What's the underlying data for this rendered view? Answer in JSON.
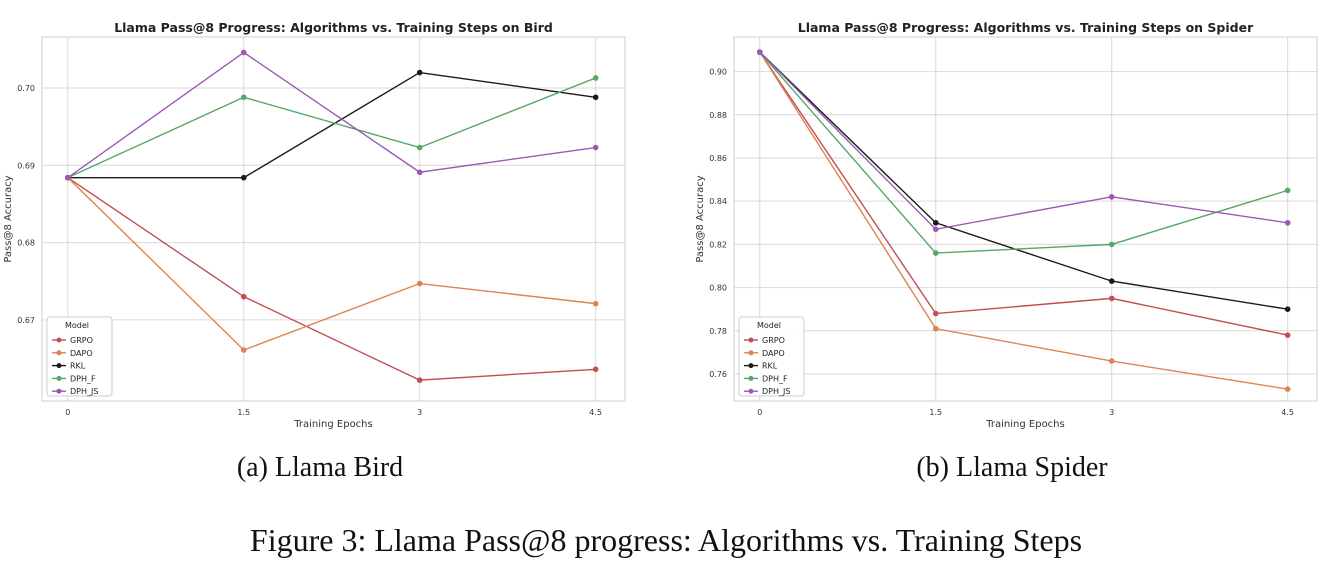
{
  "chart_data": [
    {
      "type": "line",
      "title": "Llama Pass@8 Progress: Algorithms vs. Training Steps on Bird",
      "xlabel": "Training Epochs",
      "ylabel": "Pass@8 Accuracy",
      "x": [
        0,
        1.5,
        3,
        4.5
      ],
      "x_tick_labels": [
        "0",
        "1.5",
        "3",
        "4.5"
      ],
      "xlim": [
        -0.22,
        4.75
      ],
      "ylim": [
        0.6595,
        0.7066
      ],
      "y_ticks": [
        0.67,
        0.68,
        0.69,
        0.7
      ],
      "y_tick_labels": [
        "0.67",
        "0.68",
        "0.69",
        "0.70"
      ],
      "grid": true,
      "legend": {
        "title": "Model",
        "placement": "lower-left"
      },
      "series": [
        {
          "name": "GRPO",
          "color": "#c44e52",
          "values": [
            0.6884,
            0.673,
            0.6622,
            0.6636
          ]
        },
        {
          "name": "DAPO",
          "color": "#dd8452",
          "values": [
            0.6884,
            0.6661,
            0.6747,
            0.6721
          ]
        },
        {
          "name": "RKL",
          "color": "#1a1a1a",
          "values": [
            0.6884,
            0.6884,
            0.702,
            0.6988
          ]
        },
        {
          "name": "DPH_F",
          "color": "#55a868",
          "values": [
            0.6884,
            0.6988,
            0.6923,
            0.7013
          ]
        },
        {
          "name": "DPH_JS",
          "color": "#9b59b6",
          "values": [
            0.6884,
            0.7046,
            0.6891,
            0.6923
          ]
        }
      ]
    },
    {
      "type": "line",
      "title": "Llama Pass@8 Progress: Algorithms vs. Training Steps on Spider",
      "xlabel": "Training Epochs",
      "ylabel": "Pass@8 Accuracy",
      "x": [
        0,
        1.5,
        3,
        4.5
      ],
      "x_tick_labels": [
        "0",
        "1.5",
        "3",
        "4.5"
      ],
      "xlim": [
        -0.22,
        4.75
      ],
      "ylim": [
        0.7475,
        0.916
      ],
      "y_ticks": [
        0.76,
        0.78,
        0.8,
        0.82,
        0.84,
        0.86,
        0.88,
        0.9
      ],
      "y_tick_labels": [
        "0.76",
        "0.78",
        "0.80",
        "0.82",
        "0.84",
        "0.86",
        "0.88",
        "0.90"
      ],
      "grid": true,
      "legend": {
        "title": "Model",
        "placement": "lower-left"
      },
      "series": [
        {
          "name": "GRPO",
          "color": "#c44e52",
          "values": [
            0.909,
            0.788,
            0.795,
            0.778
          ]
        },
        {
          "name": "DAPO",
          "color": "#dd8452",
          "values": [
            0.909,
            0.781,
            0.766,
            0.753
          ]
        },
        {
          "name": "RKL",
          "color": "#1a1a1a",
          "values": [
            0.909,
            0.83,
            0.803,
            0.79
          ]
        },
        {
          "name": "DPH_F",
          "color": "#55a868",
          "values": [
            0.909,
            0.816,
            0.82,
            0.845
          ]
        },
        {
          "name": "DPH_JS",
          "color": "#9b59b6",
          "values": [
            0.909,
            0.827,
            0.842,
            0.83
          ]
        }
      ]
    }
  ],
  "captions": {
    "left": "(a) Llama Bird",
    "right": "(b) Llama Spider",
    "figure": "Figure 3: Llama Pass@8 progress: Algorithms vs. Training Steps"
  }
}
